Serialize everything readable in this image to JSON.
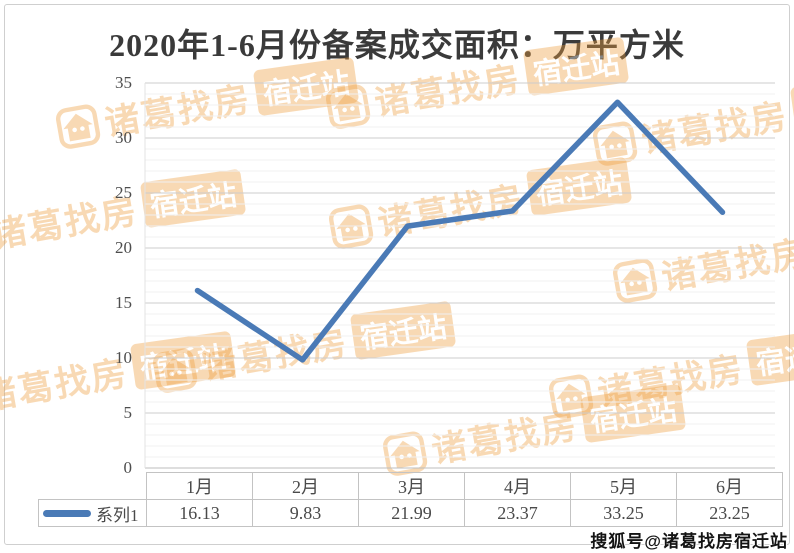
{
  "title": "2020年1-6月份备案成交面积：万平方米",
  "watermark": {
    "brand": "诸葛找房",
    "station": "宿迁站",
    "color": "#ef9e3d"
  },
  "attribution": "搜狐号@诸葛找房宿迁站",
  "chart_data": {
    "type": "line",
    "title": "2020年1-6月份备案成交面积：万平方米",
    "categories": [
      "1月",
      "2月",
      "3月",
      "4月",
      "5月",
      "6月"
    ],
    "series": [
      {
        "name": "系列1",
        "values": [
          16.13,
          9.83,
          21.99,
          23.37,
          33.25,
          23.25
        ],
        "color": "#4a7ab6"
      }
    ],
    "ylim": [
      0,
      35
    ],
    "ytick_interval": 5,
    "minor_tick_interval": 1,
    "grid": true,
    "legend_position": "bottom-left-data-table",
    "xlabel": "",
    "ylabel": ""
  }
}
